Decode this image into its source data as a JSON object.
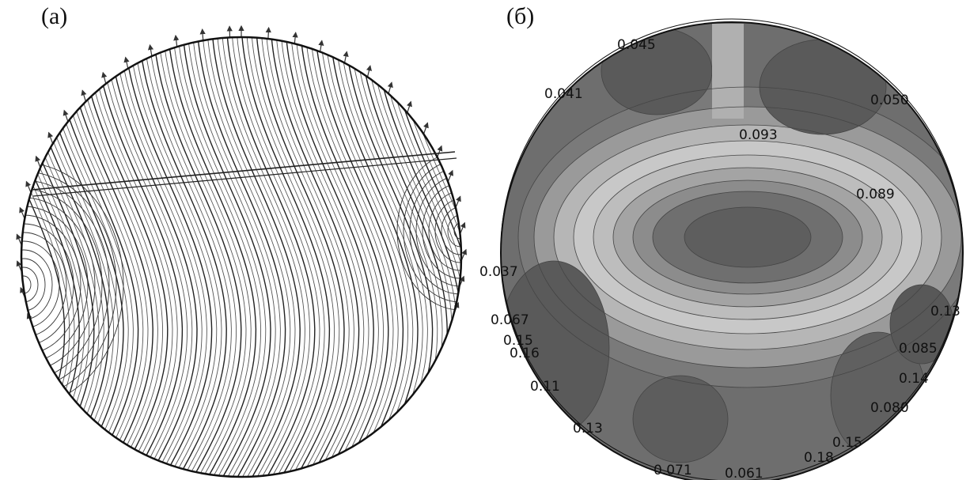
{
  "panel_a": {
    "label": "(a)"
  },
  "panel_b": {
    "label": "(б)",
    "contour_labels": [
      {
        "id": "l1",
        "text": "0.045"
      },
      {
        "id": "l2",
        "text": "0.041"
      },
      {
        "id": "l3",
        "text": "0.050"
      },
      {
        "id": "l4",
        "text": "0.093"
      },
      {
        "id": "l5",
        "text": "0.089"
      },
      {
        "id": "l6",
        "text": "0.037"
      },
      {
        "id": "l7",
        "text": "0.13"
      },
      {
        "id": "l8",
        "text": "0.067"
      },
      {
        "id": "l9",
        "text": "0.15"
      },
      {
        "id": "l10",
        "text": "0.16"
      },
      {
        "id": "l11",
        "text": "0.085"
      },
      {
        "id": "l12",
        "text": "0.14"
      },
      {
        "id": "l13",
        "text": "0.11"
      },
      {
        "id": "l14",
        "text": "0.080"
      },
      {
        "id": "l15",
        "text": "0.13"
      },
      {
        "id": "l16",
        "text": "0.15"
      },
      {
        "id": "l17",
        "text": "0.18"
      },
      {
        "id": "l18",
        "text": "0.071"
      },
      {
        "id": "l19",
        "text": "0.061"
      }
    ]
  }
}
